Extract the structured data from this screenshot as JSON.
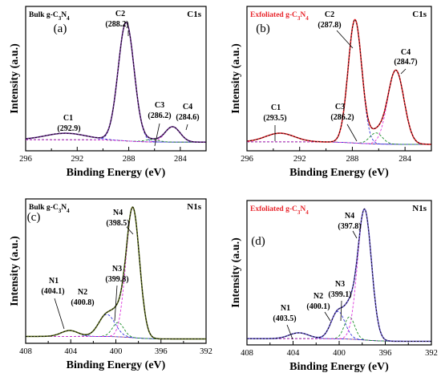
{
  "chart_data": [
    {
      "type": "line",
      "panel": "(a)",
      "sample_label": "Bulk g-C3N4",
      "core_level": "C1s",
      "xlabel": "Binding Energy (eV)",
      "ylabel": "Intensity (a.u.)",
      "xlim": [
        296,
        282
      ],
      "xticks": [
        "296",
        "292",
        "288",
        "284"
      ],
      "sample_color": "#000000",
      "peaks": [
        {
          "name": "C1",
          "value": "(292.9)",
          "center": 292.9,
          "height": 0.055,
          "width": 1.6
        },
        {
          "name": "C2",
          "value": "(288.2)",
          "center": 288.2,
          "height": 1.0,
          "width": 0.62
        },
        {
          "name": "C3",
          "value": "(286.2)",
          "center": 286.2,
          "height": 0.02,
          "width": 0.55
        },
        {
          "name": "C4",
          "value": "(284.6)",
          "center": 284.6,
          "height": 0.13,
          "width": 0.58
        }
      ]
    },
    {
      "type": "line",
      "panel": "(b)",
      "sample_label": "Exfoliated g-C3N4",
      "core_level": "C1s",
      "xlabel": "Binding Energy (eV)",
      "ylabel": "Intensity (a.u.)",
      "xlim": [
        296,
        282
      ],
      "xticks": [
        "296",
        "292",
        "288",
        "284"
      ],
      "sample_color": "#e8262c",
      "peaks": [
        {
          "name": "C1",
          "value": "(293.5)",
          "center": 293.5,
          "height": 0.07,
          "width": 1.1
        },
        {
          "name": "C2",
          "value": "(287.8)",
          "center": 287.8,
          "height": 1.0,
          "width": 0.52
        },
        {
          "name": "C3",
          "value": "(286.2)",
          "center": 286.2,
          "height": 0.09,
          "width": 0.48
        },
        {
          "name": "C4",
          "value": "(284.7)",
          "center": 284.7,
          "height": 0.6,
          "width": 0.62
        }
      ]
    },
    {
      "type": "line",
      "panel": "(c)",
      "sample_label": "Bulk g-C3N4",
      "core_level": "N1s",
      "xlabel": "Binding Energy (eV)",
      "ylabel": "Intensity (a.u.)",
      "xlim": [
        408,
        392
      ],
      "xticks": [
        "408",
        "404",
        "400",
        "396",
        "392"
      ],
      "sample_color": "#000000",
      "peaks": [
        {
          "name": "N1",
          "value": "(404.1)",
          "center": 404.1,
          "height": 0.045,
          "width": 0.75
        },
        {
          "name": "N2",
          "value": "(400.8)",
          "center": 400.8,
          "height": 0.17,
          "width": 0.72
        },
        {
          "name": "N3",
          "value": "(399.8)",
          "center": 399.8,
          "height": 0.11,
          "width": 0.5
        },
        {
          "name": "N4",
          "value": "(398.5)",
          "center": 398.5,
          "height": 1.0,
          "width": 0.6
        }
      ]
    },
    {
      "type": "line",
      "panel": "(d)",
      "sample_label": "Exfoliated g-C3N4",
      "core_level": "N1s",
      "xlabel": "Binding Energy (eV)",
      "ylabel": "Intensity (a.u.)",
      "xlim": [
        408,
        392
      ],
      "xticks": [
        "408",
        "404",
        "400",
        "396",
        "392"
      ],
      "sample_color": "#e8262c",
      "peaks": [
        {
          "name": "N1",
          "value": "(403.5)",
          "center": 403.5,
          "height": 0.045,
          "width": 0.85
        },
        {
          "name": "N2",
          "value": "(400.1)",
          "center": 400.1,
          "height": 0.21,
          "width": 0.6
        },
        {
          "name": "N3",
          "value": "(399.1)",
          "center": 399.1,
          "height": 0.17,
          "width": 0.45
        },
        {
          "name": "N4",
          "value": "(397.8)",
          "center": 397.8,
          "height": 1.0,
          "width": 0.6
        }
      ]
    }
  ],
  "colors": {
    "fit_bulk_c": "#6a2c91",
    "fit_exf_c": "#e8262c",
    "fit_bulk_n": "#5a6b1a",
    "fit_exf_n": "#6a5acd",
    "comp_blue": "#3333dd",
    "comp_green": "#1b8f2a",
    "comp_pink": "#dd33dd",
    "background_line": "#e06060",
    "sample_red": "#e8262c"
  }
}
